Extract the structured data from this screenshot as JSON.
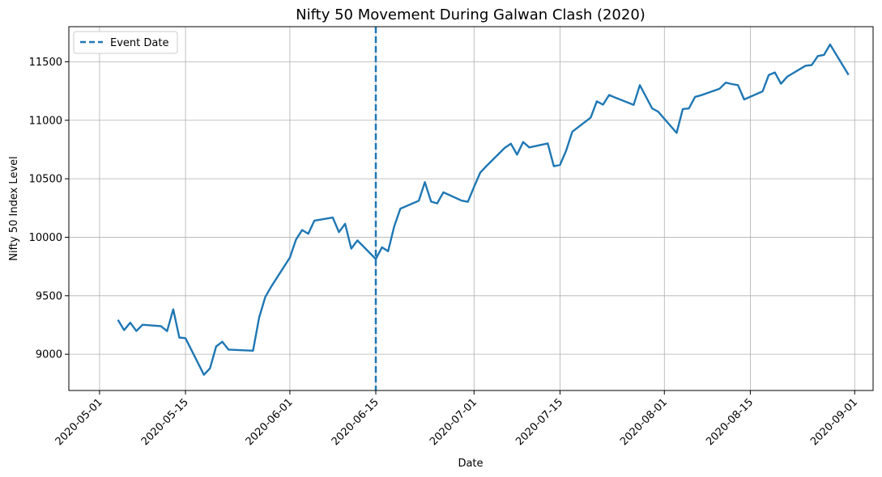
{
  "chart_data": {
    "type": "line",
    "title": "Nifty 50 Movement During Galwan Clash (2020)",
    "xlabel": "Date",
    "ylabel": "Nifty 50 Index Level",
    "xlim": [
      "2020-04-26",
      "2020-09-04"
    ],
    "ylim": [
      8690,
      11800
    ],
    "grid": true,
    "legend": {
      "placement": "top-left",
      "entries": [
        "Event Date"
      ]
    },
    "x_ticks": [
      "2020-05-01",
      "2020-05-15",
      "2020-06-01",
      "2020-06-15",
      "2020-07-01",
      "2020-07-15",
      "2020-08-01",
      "2020-08-15",
      "2020-09-01"
    ],
    "y_ticks": [
      9000,
      9500,
      10000,
      10500,
      11000,
      11500
    ],
    "event_date": "2020-06-15",
    "series": [
      {
        "color": "#1f77b4",
        "x": [
          "2020-05-04",
          "2020-05-05",
          "2020-05-06",
          "2020-05-07",
          "2020-05-08",
          "2020-05-11",
          "2020-05-12",
          "2020-05-13",
          "2020-05-14",
          "2020-05-15",
          "2020-05-18",
          "2020-05-19",
          "2020-05-20",
          "2020-05-21",
          "2020-05-22",
          "2020-05-26",
          "2020-05-27",
          "2020-05-28",
          "2020-05-29",
          "2020-06-01",
          "2020-06-02",
          "2020-06-03",
          "2020-06-04",
          "2020-06-05",
          "2020-06-08",
          "2020-06-09",
          "2020-06-10",
          "2020-06-11",
          "2020-06-12",
          "2020-06-15",
          "2020-06-16",
          "2020-06-17",
          "2020-06-18",
          "2020-06-19",
          "2020-06-22",
          "2020-06-23",
          "2020-06-24",
          "2020-06-25",
          "2020-06-26",
          "2020-06-29",
          "2020-06-30",
          "2020-07-01",
          "2020-07-02",
          "2020-07-03",
          "2020-07-06",
          "2020-07-07",
          "2020-07-08",
          "2020-07-09",
          "2020-07-10",
          "2020-07-13",
          "2020-07-14",
          "2020-07-15",
          "2020-07-16",
          "2020-07-17",
          "2020-07-20",
          "2020-07-21",
          "2020-07-22",
          "2020-07-23",
          "2020-07-24",
          "2020-07-27",
          "2020-07-28",
          "2020-07-29",
          "2020-07-30",
          "2020-07-31",
          "2020-08-03",
          "2020-08-04",
          "2020-08-05",
          "2020-08-06",
          "2020-08-07",
          "2020-08-10",
          "2020-08-11",
          "2020-08-12",
          "2020-08-13",
          "2020-08-14",
          "2020-08-17",
          "2020-08-18",
          "2020-08-19",
          "2020-08-20",
          "2020-08-21",
          "2020-08-24",
          "2020-08-25",
          "2020-08-26",
          "2020-08-27",
          "2020-08-28",
          "2020-08-31"
        ],
        "y": [
          9294,
          9206,
          9270,
          9199,
          9252,
          9240,
          9197,
          9384,
          9143,
          9137,
          8824,
          8880,
          9067,
          9107,
          9040,
          9030,
          9315,
          9490,
          9580,
          9826,
          9980,
          10062,
          10030,
          10142,
          10168,
          10044,
          10115,
          9903,
          9973,
          9814,
          9914,
          9881,
          10092,
          10244,
          10312,
          10471,
          10305,
          10289,
          10384,
          10313,
          10303,
          10430,
          10552,
          10608,
          10764,
          10800,
          10706,
          10814,
          10768,
          10802,
          10607,
          10618,
          10740,
          10902,
          11023,
          11162,
          11133,
          11216,
          11194,
          11132,
          11300,
          11202,
          11102,
          11073,
          10892,
          11096,
          11101,
          11200,
          11214,
          11270,
          11322,
          11309,
          11300,
          11178,
          11247,
          11386,
          11409,
          11312,
          11372,
          11466,
          11472,
          11549,
          11559,
          11648,
          11388
        ]
      }
    ]
  }
}
